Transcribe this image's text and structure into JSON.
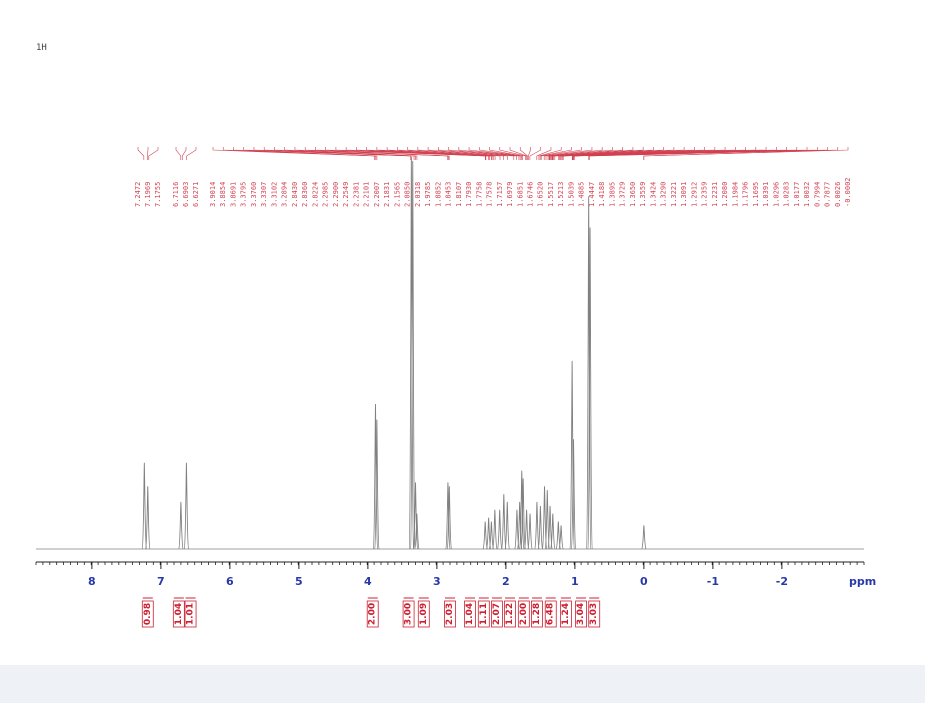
{
  "chart_data": {
    "type": "nmr",
    "title": "1H",
    "x_label": "ppm",
    "xlim": [
      8.81,
      -3.19
    ],
    "xticks": [
      8,
      7,
      6,
      5,
      4,
      3,
      2,
      1,
      0,
      -1,
      -2
    ],
    "color": "#808080",
    "label_color": "#d04050",
    "signals": {
      "x": [
        7.24,
        7.19,
        6.71,
        6.63,
        3.89,
        3.87,
        3.37,
        3.35,
        3.31,
        3.29,
        2.84,
        2.82,
        2.3,
        2.25,
        2.21,
        2.16,
        2.09,
        2.03,
        1.98,
        1.84,
        1.8,
        1.77,
        1.75,
        1.7,
        1.65,
        1.55,
        1.5,
        1.44,
        1.4,
        1.36,
        1.32,
        1.24,
        1.2,
        1.04,
        1.02,
        0.8,
        0.78,
        0.0
      ],
      "values": [
        22,
        16,
        12,
        22,
        37,
        33,
        100,
        99,
        17,
        9,
        17,
        16,
        7,
        8,
        7,
        10,
        10,
        14,
        12,
        10,
        12,
        20,
        18,
        10,
        9,
        12,
        11,
        16,
        15,
        11,
        9,
        7,
        6,
        48,
        28,
        90,
        82,
        6
      ]
    },
    "peaks": {
      "x": [
        7.2472,
        7.1969,
        7.1755,
        6.7116,
        6.6903,
        6.6271,
        3.9014,
        3.8854,
        3.8691,
        3.3795,
        3.376,
        3.3307,
        3.3102,
        3.2894,
        2.843,
        2.836,
        2.8224,
        2.2985,
        2.29,
        2.2549,
        2.2381,
        2.2101,
        2.2007,
        2.1831,
        2.1565,
        2.085,
        2.0318,
        1.9785,
        1.8852,
        1.8453,
        1.8107,
        1.793,
        1.7758,
        1.7578,
        1.7157,
        1.6979,
        1.6851,
        1.6746,
        1.652,
        1.5517,
        1.5213,
        1.5039,
        1.4885,
        1.4447,
        1.4188,
        1.3895,
        1.3729,
        1.365,
        1.3559,
        1.3424,
        1.329,
        1.3221,
        1.3091,
        1.2912,
        1.2359,
        1.2231,
        1.208,
        1.1984,
        1.1796,
        1.1695,
        1.0391,
        1.0296,
        1.0283,
        1.0177,
        1.0032,
        0.7994,
        0.7877,
        0.0026,
        -0.0002
      ],
      "labels": [
        "7.2472",
        "7.1969",
        "7.1755",
        "6.7116",
        "6.6903",
        "6.6271",
        "3.9014",
        "3.8854",
        "3.8691",
        "3.3795",
        "3.3760",
        "3.3307",
        "3.3102",
        "3.2894",
        "2.8430",
        "2.8360",
        "2.8224",
        "2.2985",
        "2.2900",
        "2.2549",
        "2.2381",
        "2.2101",
        "2.2007",
        "2.1831",
        "2.1565",
        "2.0850",
        "2.0318",
        "1.9785",
        "1.8852",
        "1.8453",
        "1.8107",
        "1.7930",
        "1.7758",
        "1.7578",
        "1.7157",
        "1.6979",
        "1.6851",
        "1.6746",
        "1.6520",
        "1.5517",
        "1.5213",
        "1.5039",
        "1.4885",
        "1.4447",
        "1.4188",
        "1.3895",
        "1.3729",
        "1.3650",
        "1.3559",
        "1.3424",
        "1.3290",
        "1.3221",
        "1.3091",
        "1.2912",
        "1.2359",
        "1.2231",
        "1.2080",
        "1.1984",
        "1.1796",
        "1.1695",
        "1.0391",
        "1.0296",
        "1.0283",
        "1.0177",
        "1.0032",
        "0.7994",
        "0.7877",
        "0.0026",
        "-0.0002"
      ]
    },
    "integrals": {
      "x": [
        7.19,
        6.74,
        6.57,
        3.93,
        3.41,
        3.19,
        2.81,
        2.52,
        2.32,
        2.13,
        1.94,
        1.74,
        1.55,
        1.35,
        1.13,
        0.91,
        0.72
      ],
      "labels": [
        "0.98",
        "1.04",
        "1.01",
        "2.00",
        "3.00",
        "1.09",
        "2.03",
        "1.04",
        "1.11",
        "2.07",
        "1.22",
        "2.00",
        "1.28",
        "6.48",
        "1.24",
        "3.04",
        "3.03"
      ]
    }
  }
}
